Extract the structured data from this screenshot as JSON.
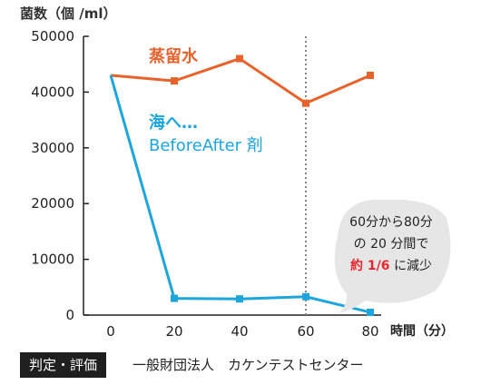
{
  "chart_data": {
    "type": "line",
    "ylabel": "菌数（個 /ml）",
    "xlabel": "時間（分）",
    "x": [
      0,
      20,
      40,
      60,
      80
    ],
    "xticks": [
      "0",
      "20",
      "40",
      "60",
      "80"
    ],
    "yticks": [
      "0",
      "10000",
      "20000",
      "30000",
      "40000",
      "50000"
    ],
    "xlim": [
      0,
      80
    ],
    "ylim": [
      0,
      50000
    ],
    "grid": false,
    "series": [
      {
        "name": "蒸留水",
        "values": [
          43000,
          42000,
          46000,
          38000,
          43000
        ],
        "color": "#e8622c"
      },
      {
        "name": "海へ… BeforeAfter 剤",
        "values": [
          43000,
          3000,
          2900,
          3300,
          500
        ],
        "color": "#1ea6dc"
      }
    ],
    "series_labels": {
      "distilled_water": "蒸留水",
      "product_line1": "海へ…",
      "product_line2": "BeforeAfter 剤"
    },
    "reference_line": {
      "x": 60,
      "style": "dotted"
    },
    "callout": {
      "line1": "60分から80分",
      "line2": "の 20 分間で",
      "line3_highlight": "約 1/6",
      "line3_rest": " に減少",
      "highlight_color": "#e8262c",
      "bubble_color": "#e6e6e6"
    }
  },
  "footer": {
    "badge": "判定・評価",
    "organization": "一般財団法人　カケンテストセンター"
  }
}
